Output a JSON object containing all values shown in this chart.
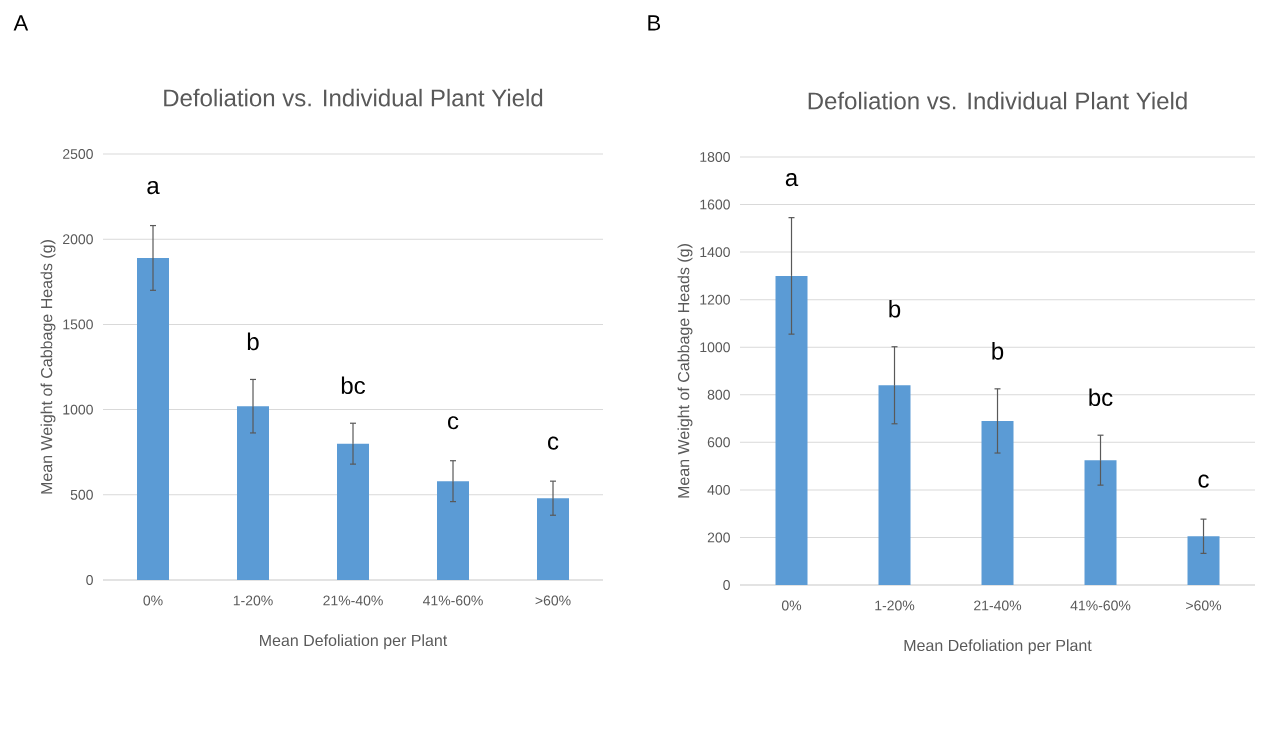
{
  "chart_data": [
    {
      "type": "bar",
      "title": "Defoliation vs. Individual Plant Yield",
      "xlabel": "Mean Defoliation per Plant",
      "ylabel": "Mean Weight of Cabbage Heads (g)",
      "categories": [
        "0%",
        "1-20%",
        "21%-40%",
        "41%-60%",
        ">60%"
      ],
      "values": [
        1890,
        1020,
        800,
        580,
        480
      ],
      "errors": [
        190,
        157,
        120,
        120,
        100
      ],
      "color": "#5b9bd5",
      "ylim": [
        0,
        2500
      ],
      "yticks": [
        0,
        500,
        1000,
        1500,
        2000,
        2500
      ],
      "grid": "y",
      "annotations": [
        "A",
        "a",
        "b",
        "bc",
        "c",
        "c"
      ]
    },
    {
      "type": "bar",
      "title": "Defoliation vs. Individual Plant Yield",
      "xlabel": "Mean Defoliation per Plant",
      "ylabel": "Mean Weight of Cabbage Heads (g)",
      "categories": [
        "0%",
        "1-20%",
        "21-40%",
        "41%-60%",
        ">60%"
      ],
      "values": [
        1300,
        840,
        690,
        525,
        205
      ],
      "errors": [
        245,
        162,
        135,
        105,
        72
      ],
      "color": "#5b9bd5",
      "ylim": [
        0,
        1800
      ],
      "yticks": [
        0,
        200,
        400,
        600,
        800,
        1000,
        1200,
        1400,
        1600,
        1800
      ],
      "grid": "y",
      "annotations": [
        "B",
        "a",
        "b",
        "b",
        "bc",
        "c"
      ]
    }
  ]
}
